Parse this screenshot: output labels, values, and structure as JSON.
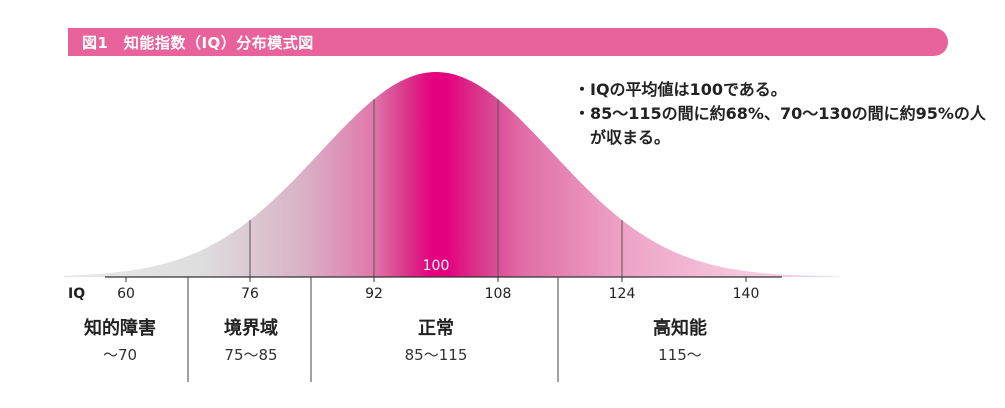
{
  "header": {
    "title": "図1　知能指数（IQ）分布模式図"
  },
  "notes": [
    "IQの平均値は100である。",
    "85〜115の間に約68%、70〜130の間に約95%の人が収まる。"
  ],
  "colors": {
    "accent": "#e8629b",
    "peak": "#e5007f",
    "low": "#d9d9d9"
  },
  "chart_data": {
    "type": "area",
    "title": "",
    "xlabel": "IQ",
    "ylabel": "",
    "distribution": {
      "mean": 100,
      "sd": 15
    },
    "xlim": [
      52,
      152
    ],
    "x_ticks": [
      60,
      76,
      92,
      108,
      124,
      140
    ],
    "divider_lines": [
      76,
      92,
      108,
      124
    ],
    "peak_label": "100",
    "categories": [
      {
        "name": "知的障害",
        "range": "〜70"
      },
      {
        "name": "境界域",
        "range": "75〜85"
      },
      {
        "name": "正常",
        "range": "85〜115"
      },
      {
        "name": "高知能",
        "range": "115〜"
      }
    ]
  }
}
